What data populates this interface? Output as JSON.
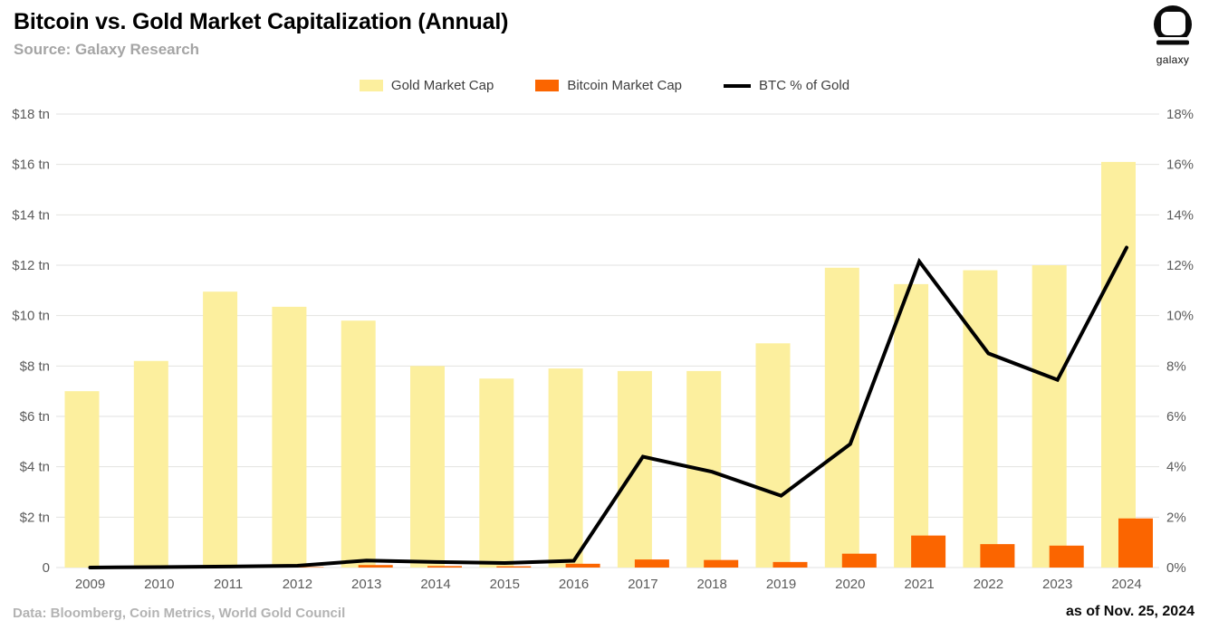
{
  "header": {
    "title": "Bitcoin vs. Gold Market Capitalization (Annual)",
    "subtitle": "Source: Galaxy Research"
  },
  "logo": {
    "label": "galaxy"
  },
  "legend": [
    {
      "label": "Gold Market Cap",
      "color": "#FCEF9E",
      "type": "swatch"
    },
    {
      "label": "Bitcoin Market Cap",
      "color": "#FB6500",
      "type": "swatch"
    },
    {
      "label": "BTC % of Gold",
      "color": "#000000",
      "type": "line"
    }
  ],
  "footer": {
    "left": "Data: Bloomberg, Coin Metrics, World Gold Council",
    "right": "as of Nov. 25, 2024"
  },
  "chart_data": {
    "type": "combo",
    "title": "Bitcoin vs. Gold Market Capitalization (Annual)",
    "categories": [
      "2009",
      "2010",
      "2011",
      "2012",
      "2013",
      "2014",
      "2015",
      "2016",
      "2017",
      "2018",
      "2019",
      "2020",
      "2021",
      "2022",
      "2023",
      "2024"
    ],
    "series": [
      {
        "name": "Gold Market Cap",
        "type": "bar",
        "axis": "left",
        "unit": "$ tn",
        "color": "#FCEF9E",
        "values": [
          7.0,
          8.2,
          10.95,
          10.35,
          9.8,
          8.0,
          7.5,
          7.9,
          7.8,
          7.8,
          8.9,
          11.9,
          11.25,
          11.8,
          12.0,
          16.1
        ]
      },
      {
        "name": "Bitcoin Market Cap",
        "type": "bar",
        "axis": "left",
        "unit": "$ tn",
        "color": "#FB6500",
        "values": [
          0,
          0,
          0.01,
          0.02,
          0.1,
          0.06,
          0.05,
          0.15,
          0.32,
          0.3,
          0.22,
          0.55,
          1.27,
          0.93,
          0.87,
          1.95
        ]
      },
      {
        "name": "BTC % of Gold",
        "type": "line",
        "axis": "right",
        "unit": "%",
        "color": "#000000",
        "values": [
          0.0,
          0.02,
          0.04,
          0.07,
          0.28,
          0.22,
          0.18,
          0.27,
          4.4,
          3.8,
          2.85,
          4.9,
          12.15,
          8.5,
          7.45,
          12.7
        ]
      }
    ],
    "left_axis": {
      "ticks": [
        "$18 tn",
        "$16 tn",
        "$14 tn",
        "$12 tn",
        "$10 tn",
        "$8 tn",
        "$6 tn",
        "$4 tn",
        "$2 tn",
        "0"
      ],
      "min": 0,
      "max": 18
    },
    "right_axis": {
      "ticks": [
        "18%",
        "16%",
        "14%",
        "12%",
        "10%",
        "8%",
        "6%",
        "4%",
        "2%",
        "0%"
      ],
      "min": 0,
      "max": 18
    },
    "grid": true,
    "legend_position": "top",
    "grid_color": "#e2e2e0",
    "axis_label_color": "#5b5b5b"
  }
}
